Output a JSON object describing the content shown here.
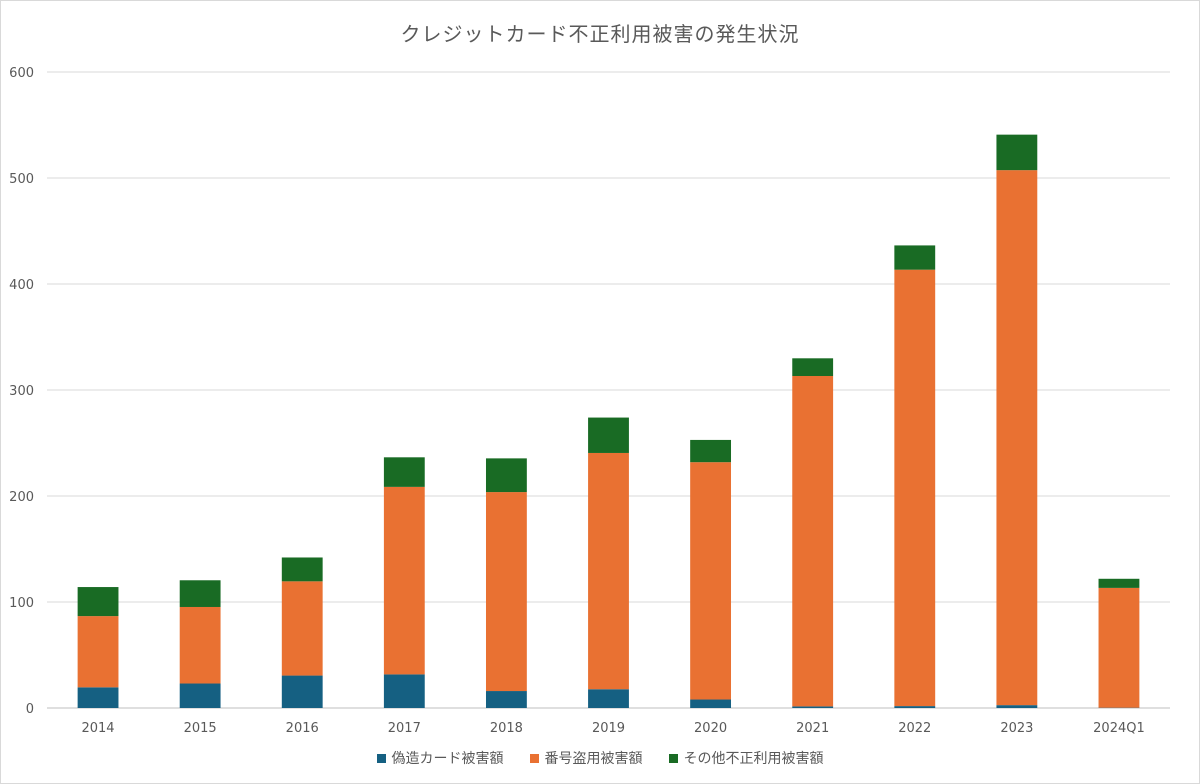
{
  "chart_data": {
    "type": "bar",
    "stacked": true,
    "title": "クレジットカード不正利用被害の発生状況",
    "xlabel": "",
    "ylabel": "",
    "ylim": [
      0,
      600
    ],
    "yticks": [
      0,
      100,
      200,
      300,
      400,
      500,
      600
    ],
    "grid": true,
    "legend_position": "bottom",
    "categories": [
      "2014",
      "2015",
      "2016",
      "2017",
      "2018",
      "2019",
      "2020",
      "2021",
      "2022",
      "2023",
      "2024Q1"
    ],
    "series": [
      {
        "name": "偽造カード被害額",
        "color": "#156082",
        "values": [
          19.5,
          23.1,
          30.6,
          31.7,
          16.0,
          17.7,
          8.0,
          1.5,
          1.8,
          2.7,
          0.3
        ]
      },
      {
        "name": "番号盗用被害額",
        "color": "#e97132",
        "values": [
          67.2,
          72.2,
          88.9,
          176.9,
          187.7,
          222.9,
          223.9,
          311.7,
          411.7,
          504.7,
          113.0
        ]
      },
      {
        "name": "その他不正利用被害額",
        "color": "#196b24",
        "values": [
          27.4,
          25.2,
          22.5,
          27.9,
          31.8,
          33.4,
          21.0,
          16.7,
          22.9,
          33.5,
          8.6
        ]
      }
    ]
  }
}
